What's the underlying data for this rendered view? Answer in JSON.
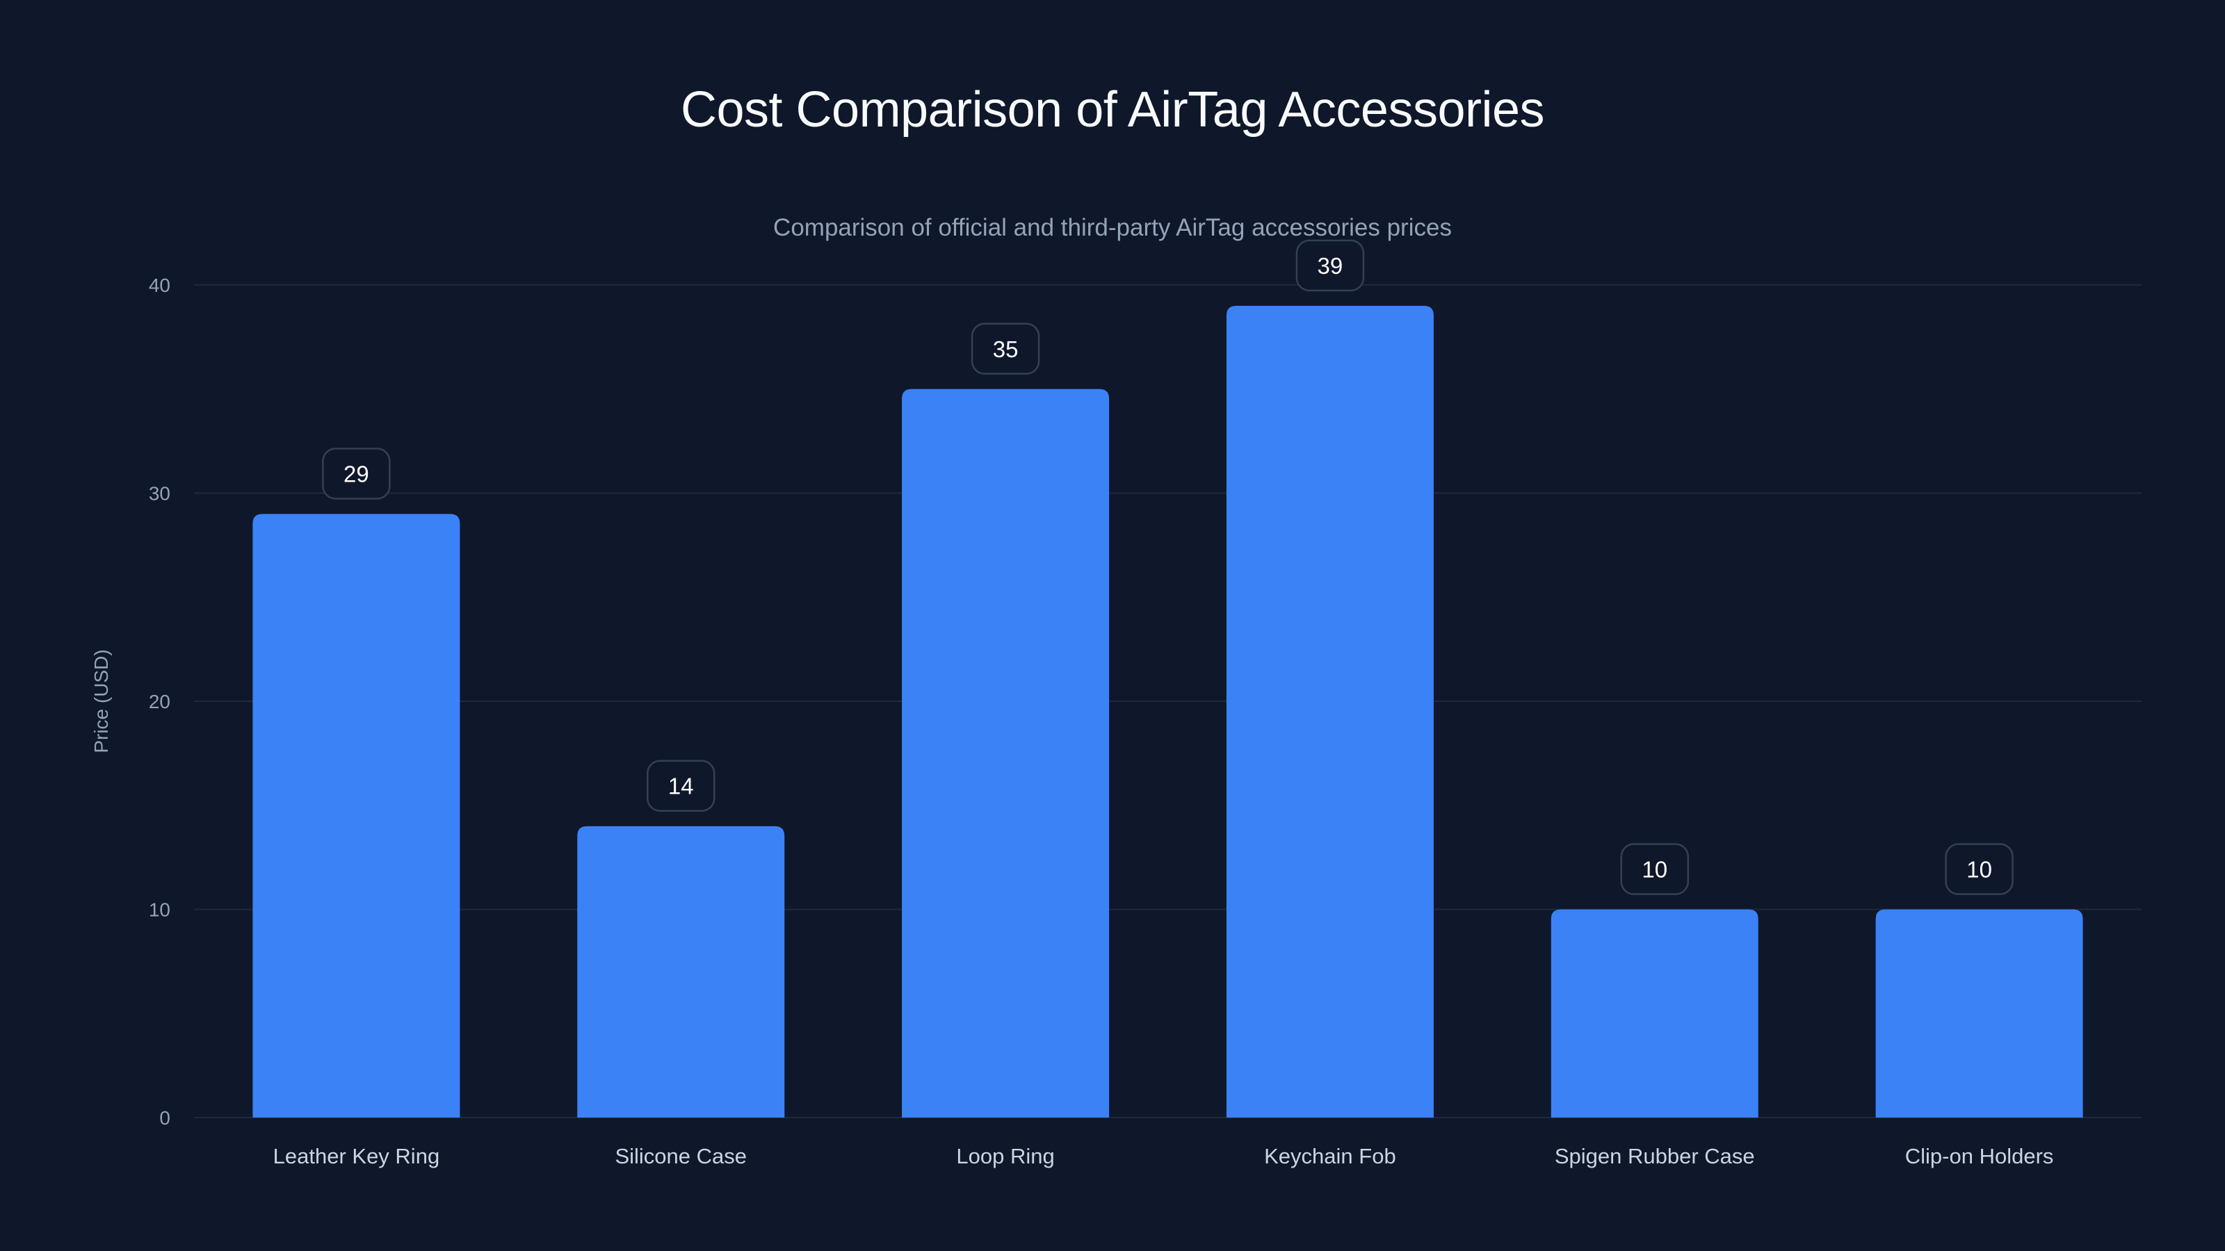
{
  "header": {
    "title": "Cost Comparison of AirTag Accessories",
    "subtitle": "Comparison of official and third-party AirTag accessories prices"
  },
  "colors": {
    "background": "#0f172a",
    "bar": "#3b82f6",
    "grid": "#1e293b",
    "label_box_border": "#334155",
    "label_box_fill": "#0f172a",
    "title": "#f8fafc",
    "subtitle": "#94a3b8",
    "tick": "#94a3b8",
    "x_label": "#cbd5e1"
  },
  "chart_data": {
    "type": "bar",
    "title": "Cost Comparison of AirTag Accessories",
    "subtitle": "Comparison of official and third-party AirTag accessories prices",
    "categories": [
      "Leather Key Ring",
      "Silicone Case",
      "Loop Ring",
      "Keychain Fob",
      "Spigen Rubber Case",
      "Clip-on Holders"
    ],
    "values": [
      29,
      14,
      35,
      39,
      10,
      10
    ],
    "xlabel": "",
    "ylabel": "Price (USD)",
    "ylim": [
      0,
      40
    ],
    "yticks": [
      0,
      10,
      20,
      30,
      40
    ],
    "grid": true,
    "legend": null,
    "data_labels": true
  }
}
